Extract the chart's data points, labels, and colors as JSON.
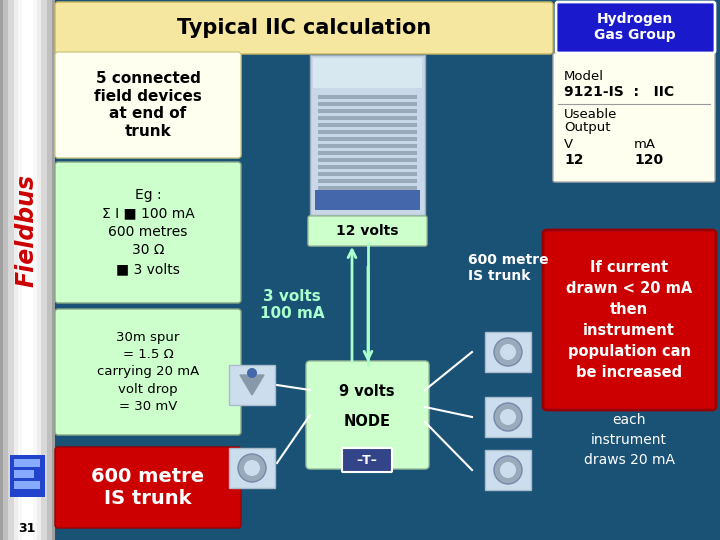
{
  "title": "Typical IIC calculation",
  "title_bg": "#f5e6a0",
  "main_bg": "#1a5276",
  "sidebar_gradient": [
    "#b0b0b0",
    "#d8d8d8",
    "#f0f0f0",
    "#d8d8d8",
    "#b0b0b0"
  ],
  "sidebar_text": "Fieldbus",
  "sidebar_text_color": "#cc0000",
  "page_num": "31",
  "hydrogen_box_bg": "#1a1acc",
  "hydrogen_box_text": "Hydrogen\nGas Group",
  "hydrogen_text_color": "#ffffff",
  "model_box_bg": "#fffff0",
  "model_line1": "Model",
  "model_line2": "9121-IS  :   IIC",
  "model_line3": "Useable",
  "model_line4": "Output",
  "model_line5_v": "V",
  "model_line5_ma": "mA",
  "model_line6_v": "12",
  "model_line6_ma": "120",
  "left_box1_bg": "#fffff0",
  "left_box1_text": "5 connected\nfield devices\nat end of\ntrunk",
  "left_box2_bg": "#ccffcc",
  "left_box2_text": "Eg :\nΣ I ■ 100 mA\n600 metres\n30 Ω\n■ 3 volts",
  "left_box3_bg": "#ccffcc",
  "left_box3_text": "30m spur\n= 1.5 Ω\ncarrying 20 mA\nvolt drop\n= 30 mV",
  "left_box4_bg": "#cc0000",
  "left_box4_text": "600 metre\nIS trunk",
  "left_box4_text_color": "#ffffff",
  "node_box_bg": "#ccffcc",
  "arrow_color": "#aaffcc",
  "trunk_label": "600 metre\nIS trunk",
  "volts_label": "3 volts\n100 mA",
  "volts12_label": "12 volts",
  "red_box_bg": "#cc0000",
  "red_box_text": "If current\ndrawn < 20 mA\nthen\ninstrument\npopulation can\nbe increased",
  "red_box_text_color": "#ffffff",
  "each_inst_text": "each\ninstrument\ndraws 20 mA",
  "each_inst_color": "#ffffff",
  "terminator_label": "–T–",
  "trunk_line_color": "#aaffcc",
  "spur_line_color": "#ffffff",
  "volts_label_color": "#aaffcc"
}
